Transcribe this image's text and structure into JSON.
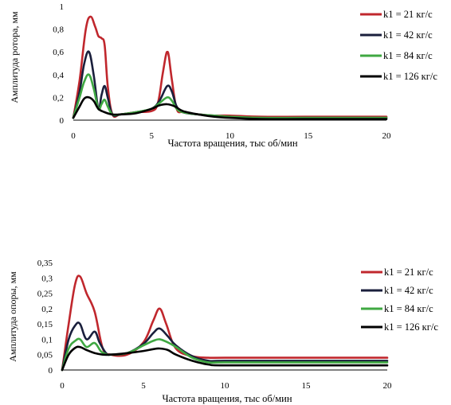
{
  "chart_data": [
    {
      "type": "line",
      "xlabel": "Частота вращения, тыс об/мин",
      "ylabel": "Амплитуда ротора, мм",
      "xlim": [
        0,
        20
      ],
      "ylim": [
        0,
        1
      ],
      "xticks": [
        "0",
        "5",
        "10",
        "15",
        "20"
      ],
      "yticks": [
        "0",
        "0,2",
        "0,4",
        "0,6",
        "0,8",
        "1"
      ],
      "grid": false,
      "legend": "right",
      "series": [
        {
          "name": "k1 = 21 кг/с",
          "color": "#c0272d",
          "x": [
            0,
            0.4,
            0.8,
            1.1,
            1.4,
            1.6,
            1.8,
            2.0,
            2.2,
            2.5,
            3.0,
            4.0,
            5.0,
            5.4,
            5.7,
            5.9,
            6.0,
            6.1,
            6.3,
            6.6,
            7.0,
            8.0,
            9.0,
            10.0,
            12.0,
            15.0,
            20.0
          ],
          "y": [
            0.02,
            0.35,
            0.8,
            0.91,
            0.82,
            0.74,
            0.72,
            0.66,
            0.3,
            0.05,
            0.05,
            0.07,
            0.08,
            0.15,
            0.4,
            0.56,
            0.6,
            0.56,
            0.35,
            0.1,
            0.07,
            0.05,
            0.04,
            0.04,
            0.03,
            0.03,
            0.03
          ]
        },
        {
          "name": "k1 = 42 кг/с",
          "color": "#1a1f3c",
          "x": [
            0,
            0.4,
            0.7,
            1.0,
            1.3,
            1.6,
            1.8,
            2.0,
            2.2,
            2.5,
            3.0,
            4.0,
            5.0,
            5.5,
            6.0,
            6.3,
            6.6,
            7.0,
            8.0,
            9.0,
            10.0,
            12.0,
            15.0,
            20.0
          ],
          "y": [
            0.02,
            0.25,
            0.5,
            0.6,
            0.4,
            0.1,
            0.22,
            0.3,
            0.2,
            0.05,
            0.05,
            0.07,
            0.1,
            0.17,
            0.3,
            0.25,
            0.12,
            0.07,
            0.05,
            0.04,
            0.03,
            0.02,
            0.02,
            0.02
          ]
        },
        {
          "name": "k1 = 84 кг/с",
          "color": "#3fa842",
          "x": [
            0,
            0.4,
            0.7,
            1.0,
            1.3,
            1.6,
            1.8,
            2.0,
            2.2,
            2.5,
            3.0,
            4.0,
            5.0,
            5.5,
            6.0,
            6.3,
            6.6,
            7.0,
            8.0,
            9.0,
            10.0,
            12.0,
            15.0,
            20.0
          ],
          "y": [
            0.02,
            0.2,
            0.34,
            0.4,
            0.28,
            0.1,
            0.14,
            0.18,
            0.12,
            0.05,
            0.05,
            0.07,
            0.1,
            0.15,
            0.2,
            0.17,
            0.1,
            0.07,
            0.05,
            0.04,
            0.03,
            0.02,
            0.02,
            0.02
          ]
        },
        {
          "name": "k1 = 126 кг/с",
          "color": "#000000",
          "x": [
            0,
            0.4,
            0.7,
            1.0,
            1.3,
            1.6,
            2.0,
            2.5,
            3.0,
            4.0,
            5.0,
            5.5,
            6.0,
            6.5,
            7.0,
            8.0,
            9.0,
            10.0,
            12.0,
            15.0,
            20.0
          ],
          "y": [
            0.02,
            0.12,
            0.19,
            0.2,
            0.17,
            0.1,
            0.07,
            0.05,
            0.05,
            0.06,
            0.1,
            0.13,
            0.14,
            0.12,
            0.08,
            0.05,
            0.03,
            0.02,
            0.01,
            0.01,
            0.01
          ]
        }
      ]
    },
    {
      "type": "line",
      "xlabel": "Частота вращения, тыс об/мин",
      "ylabel": "Амплитуда опоры, мм",
      "xlim": [
        0,
        20
      ],
      "ylim": [
        0,
        0.35
      ],
      "xticks": [
        "0",
        "5",
        "10",
        "15",
        "20"
      ],
      "yticks": [
        "0",
        "0,05",
        "0,1",
        "0,15",
        "0,2",
        "0,25",
        "0,3",
        "0,35"
      ],
      "grid": false,
      "legend": "right",
      "series": [
        {
          "name": "k1 = 21 кг/с",
          "color": "#c0272d",
          "x": [
            0,
            0.4,
            0.8,
            1.1,
            1.5,
            2.0,
            2.5,
            3.0,
            4.0,
            5.0,
            5.6,
            6.0,
            6.4,
            7.0,
            8.0,
            9.0,
            10.0,
            15.0,
            20.0
          ],
          "y": [
            0.0,
            0.15,
            0.28,
            0.305,
            0.25,
            0.19,
            0.07,
            0.05,
            0.05,
            0.09,
            0.16,
            0.2,
            0.15,
            0.07,
            0.045,
            0.04,
            0.04,
            0.04,
            0.04
          ]
        },
        {
          "name": "k1 = 42 кг/с",
          "color": "#1a1f3c",
          "x": [
            0,
            0.4,
            0.8,
            1.1,
            1.5,
            2.0,
            2.3,
            2.7,
            3.0,
            4.0,
            5.0,
            5.6,
            6.0,
            6.5,
            7.0,
            8.0,
            9.0,
            10.0,
            15.0,
            20.0
          ],
          "y": [
            0.0,
            0.1,
            0.145,
            0.15,
            0.1,
            0.125,
            0.09,
            0.055,
            0.05,
            0.055,
            0.085,
            0.12,
            0.135,
            0.11,
            0.08,
            0.045,
            0.03,
            0.03,
            0.03,
            0.03
          ]
        },
        {
          "name": "k1 = 84 кг/с",
          "color": "#3fa842",
          "x": [
            0,
            0.4,
            0.8,
            1.1,
            1.5,
            2.0,
            2.4,
            2.8,
            3.0,
            4.0,
            5.0,
            5.6,
            6.0,
            6.5,
            7.0,
            8.0,
            9.0,
            10.0,
            15.0,
            20.0
          ],
          "y": [
            0.0,
            0.07,
            0.095,
            0.1,
            0.075,
            0.088,
            0.06,
            0.05,
            0.05,
            0.055,
            0.08,
            0.095,
            0.1,
            0.09,
            0.075,
            0.04,
            0.025,
            0.025,
            0.025,
            0.025
          ]
        },
        {
          "name": "k1 = 126 кг/с",
          "color": "#000000",
          "x": [
            0,
            0.4,
            0.8,
            1.1,
            1.5,
            2.0,
            2.5,
            3.0,
            4.0,
            5.0,
            5.6,
            6.0,
            6.5,
            7.0,
            8.0,
            9.0,
            10.0,
            15.0,
            20.0
          ],
          "y": [
            0.0,
            0.05,
            0.072,
            0.075,
            0.065,
            0.055,
            0.05,
            0.05,
            0.055,
            0.062,
            0.068,
            0.07,
            0.065,
            0.05,
            0.03,
            0.018,
            0.015,
            0.015,
            0.015
          ]
        }
      ]
    }
  ]
}
